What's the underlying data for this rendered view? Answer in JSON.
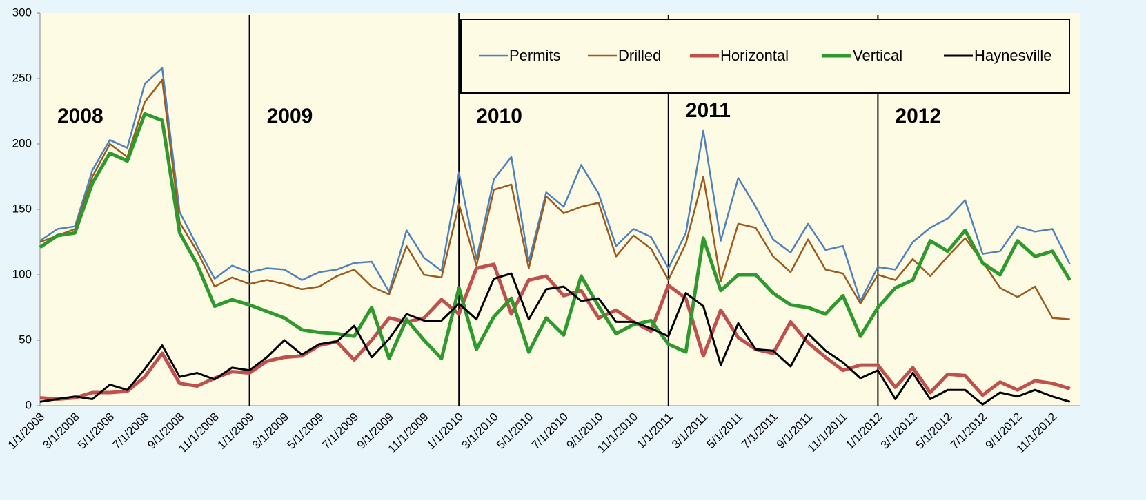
{
  "chart_data": {
    "type": "line",
    "categories": [
      "1/1/2008",
      null,
      "3/1/2008",
      null,
      "5/1/2008",
      null,
      "7/1/2008",
      null,
      "9/1/2008",
      null,
      "11/1/2008",
      null,
      "1/1/2009",
      null,
      "3/1/2009",
      null,
      "5/1/2009",
      null,
      "7/1/2009",
      null,
      "9/1/2009",
      null,
      "11/1/2009",
      null,
      "1/1/2010",
      null,
      "3/1/2010",
      null,
      "5/1/2010",
      null,
      "7/1/2010",
      null,
      "9/1/2010",
      null,
      "11/1/2010",
      null,
      "1/1/2011",
      null,
      "3/1/2011",
      null,
      "5/1/2011",
      null,
      "7/1/2011",
      null,
      "9/1/2011",
      null,
      "11/1/2011",
      null,
      "1/1/2012",
      null,
      "3/1/2012",
      null,
      "5/1/2012",
      null,
      "7/1/2012",
      null,
      "9/1/2012",
      null,
      "11/1/2012",
      null
    ],
    "series": [
      {
        "name": "Permits",
        "color": "#4f81bd",
        "width": 2.5,
        "values": [
          126,
          135,
          137,
          180,
          203,
          197,
          246,
          258,
          148,
          122,
          97,
          107,
          102,
          105,
          104,
          96,
          102,
          104,
          109,
          110,
          87,
          134,
          113,
          103,
          178,
          112,
          173,
          190,
          110,
          163,
          152,
          184,
          162,
          122,
          135,
          129,
          105,
          132,
          210,
          126,
          174,
          152,
          127,
          117,
          139,
          119,
          122,
          80,
          106,
          104,
          125,
          136,
          143,
          157,
          116,
          118,
          137,
          133,
          135,
          108
        ]
      },
      {
        "name": "Drilled",
        "color": "#9c5a1e",
        "width": 2.5,
        "values": [
          125,
          130,
          135,
          175,
          200,
          190,
          232,
          249,
          140,
          118,
          91,
          98,
          93,
          96,
          93,
          89,
          91,
          99,
          104,
          91,
          85,
          122,
          100,
          98,
          154,
          107,
          165,
          169,
          105,
          160,
          147,
          152,
          155,
          114,
          130,
          120,
          96,
          124,
          175,
          95,
          139,
          136,
          114,
          102,
          127,
          104,
          101,
          78,
          100,
          96,
          112,
          99,
          114,
          128,
          110,
          90,
          83,
          91,
          67,
          66
        ]
      },
      {
        "name": "Horizontal",
        "color": "#c0504d",
        "width": 5,
        "values": [
          6,
          5,
          6,
          10,
          10,
          11,
          22,
          40,
          17,
          15,
          21,
          26,
          25,
          34,
          37,
          38,
          46,
          49,
          35,
          50,
          67,
          64,
          67,
          81,
          70,
          105,
          108,
          70,
          96,
          99,
          84,
          88,
          67,
          73,
          64,
          57,
          92,
          82,
          38,
          73,
          52,
          43,
          40,
          64,
          48,
          37,
          27,
          31,
          31,
          14,
          29,
          10,
          24,
          23,
          8,
          18,
          12,
          19,
          17,
          13
        ]
      },
      {
        "name": "Vertical",
        "color": "#2e9a2e",
        "width": 5,
        "values": [
          121,
          130,
          132,
          170,
          193,
          187,
          223,
          218,
          132,
          108,
          76,
          81,
          77,
          72,
          67,
          58,
          56,
          55,
          53,
          75,
          36,
          66,
          50,
          36,
          90,
          43,
          68,
          82,
          41,
          67,
          54,
          99,
          76,
          55,
          62,
          65,
          47,
          41,
          128,
          88,
          100,
          100,
          86,
          77,
          75,
          70,
          84,
          53,
          75,
          90,
          96,
          126,
          118,
          134,
          109,
          100,
          126,
          114,
          118,
          96
        ]
      },
      {
        "name": "Haynesville",
        "color": "#000000",
        "width": 3,
        "values": [
          3,
          5,
          7,
          5,
          16,
          12,
          28,
          46,
          22,
          25,
          20,
          29,
          27,
          37,
          50,
          39,
          47,
          49,
          61,
          37,
          51,
          70,
          65,
          65,
          78,
          66,
          97,
          101,
          66,
          89,
          91,
          80,
          82,
          64,
          64,
          59,
          53,
          86,
          76,
          31,
          63,
          43,
          42,
          30,
          55,
          42,
          33,
          21,
          27,
          5,
          25,
          5,
          12,
          12,
          1,
          10,
          7,
          12,
          7,
          3
        ]
      }
    ],
    "annotations": [
      "2008",
      "2009",
      "2010",
      "2011",
      "2012"
    ],
    "ylim": [
      0,
      300
    ],
    "yticks": [
      0,
      50,
      100,
      150,
      200,
      250,
      300
    ],
    "grid": false
  }
}
